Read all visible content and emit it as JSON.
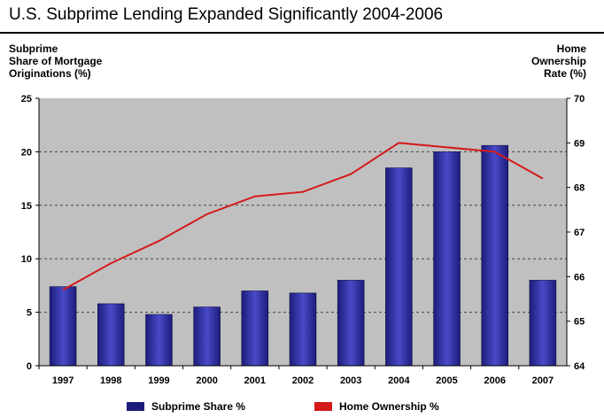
{
  "page": {
    "title": "U.S. Subprime Lending Expanded Significantly 2004-2006"
  },
  "colors": {
    "bar": "#1c1c7a",
    "bar_highlight": "#4a4ac8",
    "line": "#d41a1a",
    "plot_bg": "#c0c0c0"
  },
  "chart_data": {
    "type": "bar",
    "categories": [
      "1997",
      "1998",
      "1999",
      "2000",
      "2001",
      "2002",
      "2003",
      "2004",
      "2005",
      "2006",
      "2007"
    ],
    "series": [
      {
        "name": "Subprime Share %",
        "type": "bar",
        "axis": "left",
        "values": [
          7.4,
          5.8,
          4.8,
          5.5,
          7.0,
          6.8,
          8.0,
          18.5,
          20.0,
          20.6,
          8.0
        ]
      },
      {
        "name": "Home Ownership %",
        "type": "line",
        "axis": "right",
        "values": [
          65.7,
          66.3,
          66.8,
          67.4,
          67.8,
          67.9,
          68.3,
          69.0,
          68.9,
          68.8,
          68.2
        ]
      }
    ],
    "y_left": {
      "label": "Subprime\nShare of Mortgage\nOriginations (%)",
      "range": [
        0,
        25
      ],
      "ticks": [
        "0",
        "5",
        "10",
        "15",
        "20",
        "25"
      ]
    },
    "y_right": {
      "label": "Home\nOwnership\nRate (%)",
      "range": [
        64,
        70
      ],
      "ticks": [
        "64",
        "65",
        "66",
        "67",
        "68",
        "69",
        "70"
      ]
    },
    "grid": true,
    "legend": "bottom"
  }
}
